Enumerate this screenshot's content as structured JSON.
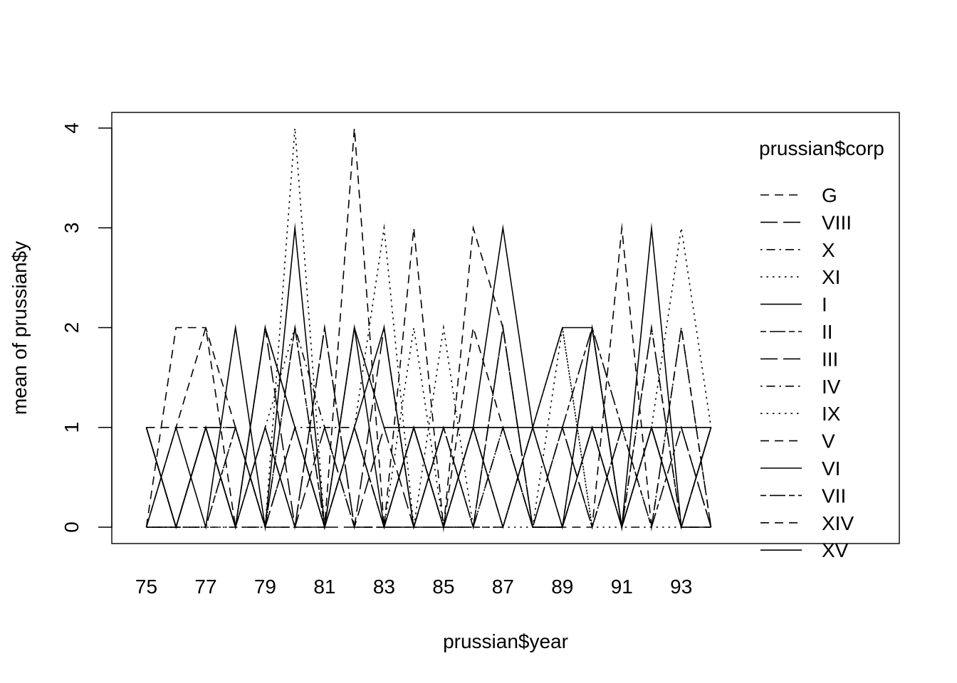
{
  "chart_data": {
    "type": "line",
    "xlabel": "prussian$year",
    "ylabel": "mean of  prussian$y",
    "x": [
      75,
      76,
      77,
      78,
      79,
      80,
      81,
      82,
      83,
      84,
      85,
      86,
      87,
      88,
      89,
      90,
      91,
      92,
      93,
      94
    ],
    "x_tick_labels": [
      "75",
      "77",
      "79",
      "81",
      "83",
      "85",
      "87",
      "89",
      "91",
      "93"
    ],
    "y_ticks": [
      0,
      1,
      2,
      3,
      4
    ],
    "ylim": [
      0,
      4
    ],
    "grid": false,
    "legend": {
      "title": "prussian$corp",
      "position": "right"
    },
    "series": [
      {
        "name": "G",
        "linetype": "dashed",
        "values": [
          0,
          2,
          2,
          1,
          0,
          0,
          2,
          0,
          0,
          1,
          0,
          1,
          0,
          1,
          0,
          0,
          1,
          1,
          1,
          0
        ]
      },
      {
        "name": "VIII",
        "linetype": "longdash",
        "values": [
          1,
          0,
          1,
          0,
          0,
          1,
          0,
          0,
          1,
          0,
          0,
          1,
          1,
          0,
          0,
          1,
          0,
          1,
          0,
          0
        ]
      },
      {
        "name": "X",
        "linetype": "dotdash",
        "values": [
          0,
          0,
          1,
          1,
          0,
          1,
          1,
          0,
          0,
          1,
          0,
          0,
          1,
          0,
          0,
          2,
          0,
          2,
          0,
          1
        ]
      },
      {
        "name": "XI",
        "linetype": "dotted",
        "values": [
          0,
          0,
          0,
          1,
          0,
          4,
          0,
          1,
          0,
          2,
          0,
          1,
          0,
          0,
          2,
          0,
          1,
          0,
          0,
          1
        ]
      },
      {
        "name": "I",
        "linetype": "solid",
        "values": [
          1,
          0,
          1,
          0,
          1,
          0,
          0,
          2,
          0,
          0,
          0,
          1,
          0,
          1,
          0,
          2,
          0,
          3,
          0,
          0
        ]
      },
      {
        "name": "II",
        "linetype": "twodash",
        "values": [
          0,
          0,
          0,
          1,
          0,
          2,
          0,
          1,
          0,
          1,
          0,
          0,
          2,
          0,
          0,
          1,
          0,
          1,
          0,
          1
        ]
      },
      {
        "name": "III",
        "linetype": "longdash",
        "values": [
          0,
          0,
          1,
          0,
          2,
          0,
          1,
          0,
          2,
          0,
          1,
          0,
          2,
          0,
          1,
          0,
          1,
          1,
          0,
          1
        ]
      },
      {
        "name": "IV",
        "linetype": "dotdash",
        "values": [
          1,
          0,
          0,
          0,
          0,
          2,
          1,
          1,
          0,
          1,
          0,
          0,
          1,
          0,
          0,
          1,
          0,
          0,
          2,
          0
        ]
      },
      {
        "name": "IX",
        "linetype": "dotted",
        "values": [
          0,
          0,
          0,
          0,
          1,
          2,
          0,
          1,
          3,
          0,
          2,
          0,
          0,
          1,
          2,
          0,
          0,
          1,
          3,
          1
        ]
      },
      {
        "name": "V",
        "linetype": "dashed",
        "values": [
          0,
          1,
          2,
          0,
          1,
          0,
          0,
          4,
          0,
          3,
          0,
          3,
          2,
          0,
          1,
          0,
          3,
          0,
          2,
          0
        ]
      },
      {
        "name": "VI",
        "linetype": "solid",
        "values": [
          0,
          1,
          0,
          2,
          0,
          3,
          0,
          1,
          2,
          0,
          1,
          1,
          3,
          1,
          2,
          2,
          0,
          1,
          0,
          1
        ]
      },
      {
        "name": "VII",
        "linetype": "twodash",
        "values": [
          1,
          0,
          1,
          1,
          0,
          0,
          2,
          0,
          0,
          0,
          1,
          0,
          0,
          1,
          1,
          2,
          1,
          0,
          1,
          0
        ]
      },
      {
        "name": "XIV",
        "linetype": "dashed",
        "values": [
          1,
          1,
          1,
          0,
          2,
          1,
          0,
          1,
          0,
          1,
          0,
          2,
          1,
          0,
          0,
          1,
          0,
          2,
          0,
          0
        ]
      },
      {
        "name": "XV",
        "linetype": "solid",
        "values": [
          1,
          0,
          1,
          0,
          2,
          1,
          0,
          2,
          1,
          1,
          1,
          1,
          1,
          1,
          1,
          1,
          1,
          1,
          1,
          1
        ]
      }
    ]
  }
}
